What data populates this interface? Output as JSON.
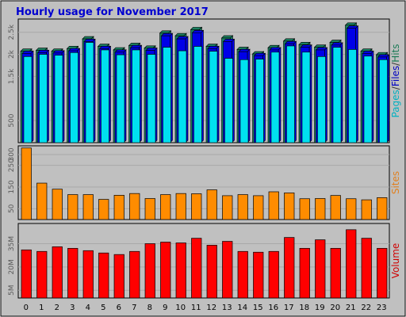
{
  "title": "Hourly usage for November 2017",
  "chart_data": {
    "type": "bar",
    "categories": [
      "0",
      "1",
      "2",
      "3",
      "4",
      "5",
      "6",
      "7",
      "8",
      "9",
      "10",
      "11",
      "12",
      "13",
      "14",
      "15",
      "16",
      "17",
      "18",
      "19",
      "20",
      "21",
      "22",
      "23"
    ],
    "panels": [
      {
        "id": "hits",
        "labels": [
          {
            "text": "Pages",
            "color": "#00b0c0"
          },
          {
            "text": "/",
            "color": "#333333"
          },
          {
            "text": "Files",
            "color": "#0000c0"
          },
          {
            "text": "/",
            "color": "#333333"
          },
          {
            "text": "Hits",
            "color": "#1a7a55"
          }
        ],
        "ylim": [
          0,
          2800
        ],
        "yticks": [
          500,
          1500,
          2000,
          2500
        ],
        "ytick_labels": [
          "500",
          "1.5k",
          "2k",
          "2.5k"
        ],
        "series": [
          {
            "name": "Hits",
            "color": "#1a8060",
            "values": [
              2070,
              2090,
              2070,
              2130,
              2350,
              2180,
              2100,
              2200,
              2140,
              2480,
              2420,
              2560,
              2180,
              2370,
              2110,
              2010,
              2150,
              2300,
              2220,
              2160,
              2270,
              2660,
              2070,
              1990
            ]
          },
          {
            "name": "Files",
            "color": "#0000e8",
            "values": [
              2020,
              2040,
              2030,
              2080,
              2290,
              2130,
              2050,
              2150,
              2090,
              2420,
              2350,
              2490,
              2130,
              2290,
              2060,
              1970,
              2100,
              2240,
              2160,
              2100,
              2210,
              2590,
              2020,
              1940
            ]
          },
          {
            "name": "Pages",
            "color": "#00e0f0",
            "values": [
              1950,
              2000,
              1980,
              2040,
              2270,
              2100,
              1990,
              2100,
              2000,
              2160,
              2080,
              2180,
              2070,
              1910,
              1880,
              1890,
              2050,
              2190,
              2050,
              1950,
              2160,
              2110,
              1960,
              1880
            ]
          }
        ]
      },
      {
        "id": "sites",
        "labels": [
          {
            "text": "Sites",
            "color": "#e08020"
          }
        ],
        "ylim": [
          0,
          340
        ],
        "yticks": [
          50,
          150,
          250,
          300
        ],
        "ytick_labels": [
          "50",
          "150",
          "250",
          "300"
        ],
        "series": [
          {
            "name": "Sites",
            "color": "#ff8c00",
            "values": [
              330,
              168,
              140,
              115,
              115,
              93,
              112,
              120,
              97,
              115,
              120,
              119,
              137,
              110,
              115,
              110,
              128,
              123,
              96,
              97,
              111,
              96,
              91,
              101
            ]
          }
        ]
      },
      {
        "id": "volume",
        "labels": [
          {
            "text": "Volume",
            "color": "#d00000"
          }
        ],
        "ylim": [
          0,
          48
        ],
        "yticks": [
          5,
          20,
          35
        ],
        "ytick_labels": [
          "5M",
          "20M",
          "35M"
        ],
        "series": [
          {
            "name": "Volume",
            "color": "#ff0000",
            "values": [
              31,
              30,
              33,
              32,
              30.5,
              29,
              28,
              30,
              35,
              36,
              35.5,
              38.5,
              34,
              36.5,
              30,
              29.5,
              30,
              39,
              32,
              37.5,
              32,
              44,
              38.5,
              32
            ]
          }
        ]
      }
    ]
  }
}
